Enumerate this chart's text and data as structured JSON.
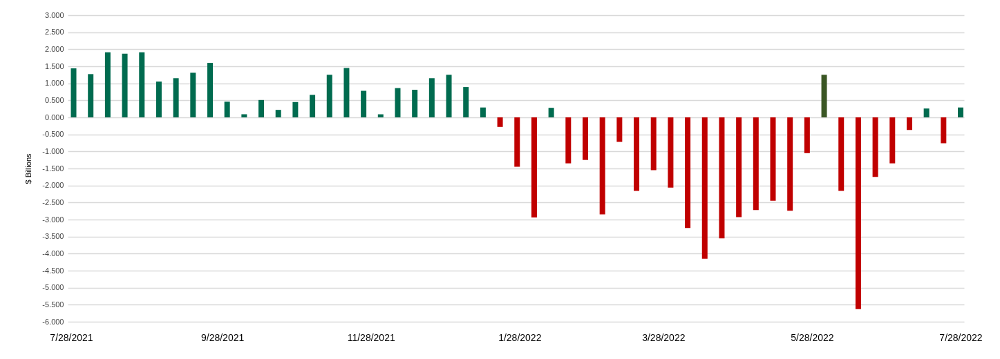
{
  "chart_data": {
    "type": "bar",
    "ylabel": "$ Billions",
    "x": [
      "2021-07-29",
      "2021-08-05",
      "2021-08-12",
      "2021-08-19",
      "2021-08-26",
      "2021-09-02",
      "2021-09-09",
      "2021-09-16",
      "2021-09-23",
      "2021-09-30",
      "2021-10-07",
      "2021-10-14",
      "2021-10-21",
      "2021-10-28",
      "2021-11-04",
      "2021-11-11",
      "2021-11-18",
      "2021-11-25",
      "2021-12-02",
      "2021-12-09",
      "2021-12-16",
      "2021-12-23",
      "2021-12-30",
      "2022-01-06",
      "2022-01-13",
      "2022-01-20",
      "2022-01-27",
      "2022-02-03",
      "2022-02-10",
      "2022-02-17",
      "2022-02-24",
      "2022-03-03",
      "2022-03-10",
      "2022-03-17",
      "2022-03-24",
      "2022-03-31",
      "2022-04-07",
      "2022-04-14",
      "2022-04-21",
      "2022-04-28",
      "2022-05-05",
      "2022-05-12",
      "2022-05-19",
      "2022-05-26",
      "2022-06-02",
      "2022-06-09",
      "2022-06-16",
      "2022-06-23",
      "2022-06-30",
      "2022-07-07",
      "2022-07-14",
      "2022-07-21",
      "2022-07-28"
    ],
    "values": [
      1.44,
      1.27,
      1.91,
      1.87,
      1.91,
      1.05,
      1.15,
      1.31,
      1.6,
      0.46,
      0.09,
      0.51,
      0.22,
      0.45,
      0.66,
      1.25,
      1.45,
      0.78,
      0.09,
      0.86,
      0.81,
      1.15,
      1.25,
      0.89,
      0.29,
      -0.28,
      -1.45,
      -2.94,
      0.28,
      -1.35,
      -1.25,
      -2.85,
      -0.72,
      -2.16,
      -1.55,
      -2.06,
      -3.25,
      -4.15,
      -3.55,
      -2.93,
      -2.72,
      -2.45,
      -2.74,
      -1.05,
      1.25,
      -2.16,
      -5.63,
      -1.75,
      -1.35,
      -0.37,
      0.26,
      -0.76,
      0.29
    ],
    "colors": [
      "#006b4f",
      "#006b4f",
      "#006b4f",
      "#006b4f",
      "#006b4f",
      "#006b4f",
      "#006b4f",
      "#006b4f",
      "#006b4f",
      "#006b4f",
      "#006b4f",
      "#006b4f",
      "#006b4f",
      "#006b4f",
      "#006b4f",
      "#006b4f",
      "#006b4f",
      "#006b4f",
      "#006b4f",
      "#006b4f",
      "#006b4f",
      "#006b4f",
      "#006b4f",
      "#006b4f",
      "#006b4f",
      "#c00000",
      "#c00000",
      "#c00000",
      "#006b4f",
      "#c00000",
      "#c00000",
      "#c00000",
      "#c00000",
      "#c00000",
      "#c00000",
      "#c00000",
      "#c00000",
      "#c00000",
      "#c00000",
      "#c00000",
      "#c00000",
      "#c00000",
      "#c00000",
      "#c00000",
      "#3a5624",
      "#c00000",
      "#c00000",
      "#c00000",
      "#c00000",
      "#c00000",
      "#006b4f",
      "#c00000",
      "#006b4f"
    ],
    "xlim": [
      "2021-07-28",
      "2022-07-28"
    ],
    "xticks": [
      {
        "value": "2021-07-28",
        "label": "7/28/2021"
      },
      {
        "value": "2021-09-28",
        "label": "9/28/2021"
      },
      {
        "value": "2021-11-28",
        "label": "11/28/2021"
      },
      {
        "value": "2022-01-28",
        "label": "1/28/2022"
      },
      {
        "value": "2022-03-28",
        "label": "3/28/2022"
      },
      {
        "value": "2022-05-28",
        "label": "5/28/2022"
      },
      {
        "value": "2022-07-28",
        "label": "7/28/2022"
      }
    ],
    "ylim": [
      -6,
      3
    ],
    "yticks": [
      {
        "value": 3,
        "label": "3.000"
      },
      {
        "value": 2.5,
        "label": "2.500"
      },
      {
        "value": 2,
        "label": "2.000"
      },
      {
        "value": 1.5,
        "label": "1.500"
      },
      {
        "value": 1,
        "label": "1.000"
      },
      {
        "value": 0.5,
        "label": "0.500"
      },
      {
        "value": 0,
        "label": "0.000"
      },
      {
        "value": -0.5,
        "label": "-0.500"
      },
      {
        "value": -1,
        "label": "-1.000"
      },
      {
        "value": -1.5,
        "label": "-1.500"
      },
      {
        "value": -2,
        "label": "-2.000"
      },
      {
        "value": -2.5,
        "label": "-2.500"
      },
      {
        "value": -3,
        "label": "-3.000"
      },
      {
        "value": -3.5,
        "label": "-3.500"
      },
      {
        "value": -4,
        "label": "-4.000"
      },
      {
        "value": -4.5,
        "label": "-4.500"
      },
      {
        "value": -5,
        "label": "-5.000"
      },
      {
        "value": -5.5,
        "label": "-5.500"
      },
      {
        "value": -6,
        "label": "-6.000"
      }
    ],
    "grid": "y"
  }
}
